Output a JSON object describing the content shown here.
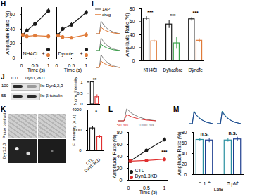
{
  "chart_data": [
    {
      "panel_label": "H",
      "type": "line",
      "x": [
        0.05,
        0.2,
        0.5,
        1
      ],
      "xlim": [
        0,
        1.1
      ],
      "xticks": [
        0,
        0.5,
        1
      ],
      "ylim": [
        0,
        70
      ],
      "yticks": [
        0,
        20,
        40,
        60
      ],
      "x_label": "Time (s)",
      "y_label": "Amplitude Ratio (%)",
      "legend": "bottom-right",
      "marker": "circle",
      "subplots": [
        {
          "title": "NH4Cl",
          "series": [
            {
              "name": "−",
              "color": "#1a1a1a",
              "values": [
                32,
                38,
                47,
                65
              ],
              "errors": [
                2,
                3,
                3,
                3
              ]
            },
            {
              "name": "+",
              "color": "#e07b39",
              "values": [
                32,
                30,
                31,
                30
              ],
              "errors": [
                2,
                2,
                2,
                3
              ]
            }
          ]
        },
        {
          "title": "Dynole",
          "series": [
            {
              "name": "−",
              "color": "#1a1a1a",
              "values": [
                32,
                40,
                46,
                63
              ],
              "errors": [
                2,
                3,
                3,
                3
              ]
            },
            {
              "name": "+",
              "color": "#e07b39",
              "values": [
                31,
                29,
                28,
                32
              ],
              "errors": [
                2,
                2,
                2,
                3
              ]
            }
          ]
        }
      ]
    },
    {
      "panel_label": "I",
      "type": "bar",
      "groups": [
        "NH4Cl",
        "Dynasore",
        "Dynole"
      ],
      "series": [
        {
          "name": "−",
          "colors": [
            "#1a1a1a",
            "#1a1a1a",
            "#1a1a1a"
          ],
          "values": [
            65,
            56,
            64
          ],
          "errors": [
            3,
            6,
            3
          ]
        },
        {
          "name": "+",
          "colors": [
            "#e07b39",
            "#3aa24a",
            "#e07b39"
          ],
          "values": [
            30,
            27,
            31
          ],
          "errors": [
            2,
            9,
            3
          ]
        }
      ],
      "annotations": [
        "***",
        "***",
        "***"
      ],
      "ylim": [
        0,
        80
      ],
      "yticks": [
        0,
        20,
        40,
        60,
        80
      ],
      "y_label": "Amplitude Ratio (%)",
      "trace_legend": [
        {
          "name": "1AP",
          "color": "#808080"
        },
        {
          "name": "drug",
          "color": "#e07b39"
        }
      ]
    },
    {
      "panel_label": "J",
      "type": "bar",
      "categories": [
        "CTL",
        "Dyn1,3KD"
      ],
      "values": [
        1,
        0.35
      ],
      "errors": [
        0.03,
        0.08
      ],
      "colors": [
        "#1a1a1a",
        "#e03030"
      ],
      "ylim": [
        0,
        1.2
      ],
      "yticks": [
        0,
        0.5,
        1
      ],
      "y_label": "Norm. Intensity",
      "tick_labels": "y",
      "annotations": [
        "**"
      ],
      "blot": {
        "lanes": [
          "CTL",
          "Dyn1,3KD"
        ],
        "markers": [
          100,
          55
        ],
        "rows": [
          "Ib: Dyn1,2,3",
          "Ib: β-tubulin"
        ]
      }
    },
    {
      "panel_label": "K",
      "type": "bar",
      "categories": [
        "CTL",
        "Dyn1,3KD"
      ],
      "values": [
        2200,
        1350
      ],
      "errors": [
        180,
        150
      ],
      "colors": [
        "#1a1a1a",
        "#e03030"
      ],
      "ylim": [
        0,
        4000
      ],
      "yticks": [
        0,
        2000,
        4000
      ],
      "y_label": "FI intensity (a.u.)",
      "annotations": [
        "*"
      ],
      "images": {
        "rows": [
          "Phase contrast",
          "Dyn1,2,3"
        ]
      }
    },
    {
      "panel_label": "L",
      "type": "line",
      "x": [
        0.05,
        0.5,
        1
      ],
      "xlim": [
        0,
        1.1
      ],
      "xticks": [
        0,
        0.5,
        1
      ],
      "ylim": [
        0,
        80
      ],
      "yticks": [
        0,
        20,
        40,
        60,
        80
      ],
      "x_label": "Time (s)",
      "y_label": "Amplitude Ratio (%)",
      "legend": "bottom-left",
      "marker": "circle",
      "series": [
        {
          "name": "CTL",
          "color": "#1a1a1a",
          "values": [
            32,
            50,
            68
          ],
          "errors": [
            2,
            2,
            3
          ]
        },
        {
          "name": "Dyn1,3KD",
          "color": "#e03030",
          "values": [
            32,
            33,
            35
          ],
          "errors": [
            2,
            2,
            2
          ]
        }
      ],
      "annotations": [
        "***"
      ],
      "trace_legend": [
        {
          "name": "50 ms",
          "color": "#e03030"
        },
        {
          "name": "1000 ms",
          "color": "#808080"
        }
      ]
    },
    {
      "panel_label": "M",
      "type": "bar",
      "groups": [
        "1",
        "5 μM"
      ],
      "group_label": "LatB",
      "series": [
        {
          "name": "−",
          "colors": [
            "#2a8fa0",
            "#2a8fa0"
          ],
          "values": [
            66,
            65
          ],
          "errors": [
            3,
            3
          ]
        },
        {
          "name": "+",
          "colors": [
            "#1f3f8f",
            "#1f3f8f"
          ],
          "values": [
            65,
            67
          ],
          "errors": [
            4,
            4
          ]
        }
      ],
      "annotations": [
        "n.s.",
        "n.s."
      ],
      "ylim": [
        0,
        80
      ],
      "yticks": [
        0,
        20,
        40,
        60,
        80
      ],
      "y_label": "Amplitude Ratio (%)"
    }
  ]
}
